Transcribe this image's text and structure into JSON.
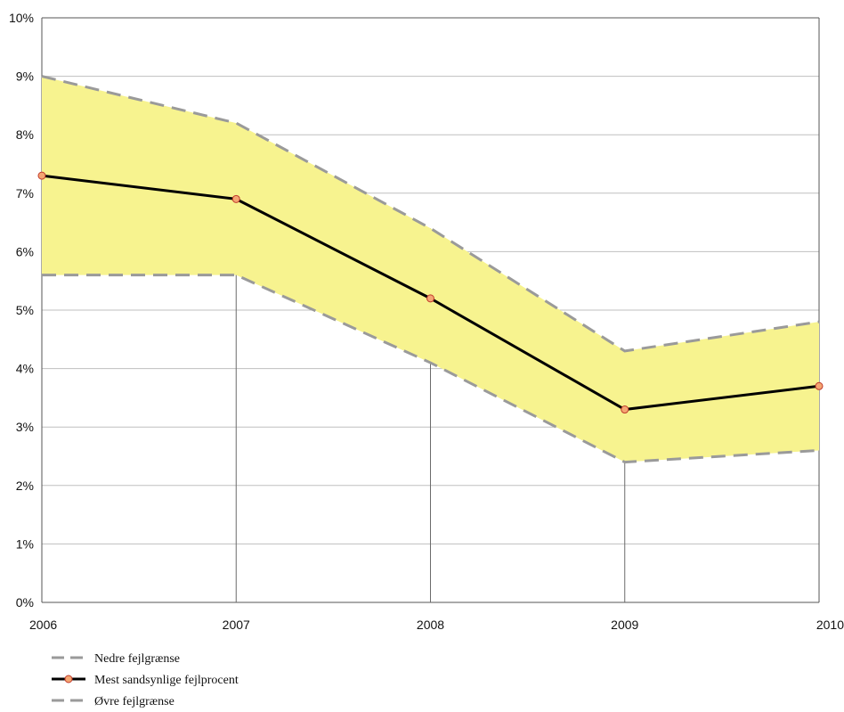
{
  "chart_data": {
    "type": "line",
    "x": [
      "2006",
      "2007",
      "2008",
      "2009",
      "2010"
    ],
    "ylim": [
      0,
      10
    ],
    "y_tick_labels": [
      "0%",
      "1%",
      "2%",
      "3%",
      "4%",
      "5%",
      "6%",
      "7%",
      "8%",
      "9%",
      "10%"
    ],
    "x_tick_labels": [
      "2006",
      "2007",
      "2008",
      "2009",
      "2010"
    ],
    "grid": true,
    "band_fill": "#f7f38f",
    "legend_placement": "bottom-left",
    "series": [
      {
        "name": "Nedre fejlgrænse",
        "values": [
          5.6,
          5.6,
          4.1,
          2.4,
          2.6
        ],
        "style": "dashed",
        "color": "#9a9a9a"
      },
      {
        "name": "Mest sandsynlige fejlprocent",
        "values": [
          7.3,
          6.9,
          5.2,
          3.3,
          3.7
        ],
        "style": "solid-markers",
        "color": "#000000",
        "marker_color": "#f4a672"
      },
      {
        "name": "Øvre fejlgrænse",
        "values": [
          9.0,
          8.2,
          6.4,
          4.3,
          4.8
        ],
        "style": "dashed",
        "color": "#9a9a9a"
      }
    ]
  }
}
